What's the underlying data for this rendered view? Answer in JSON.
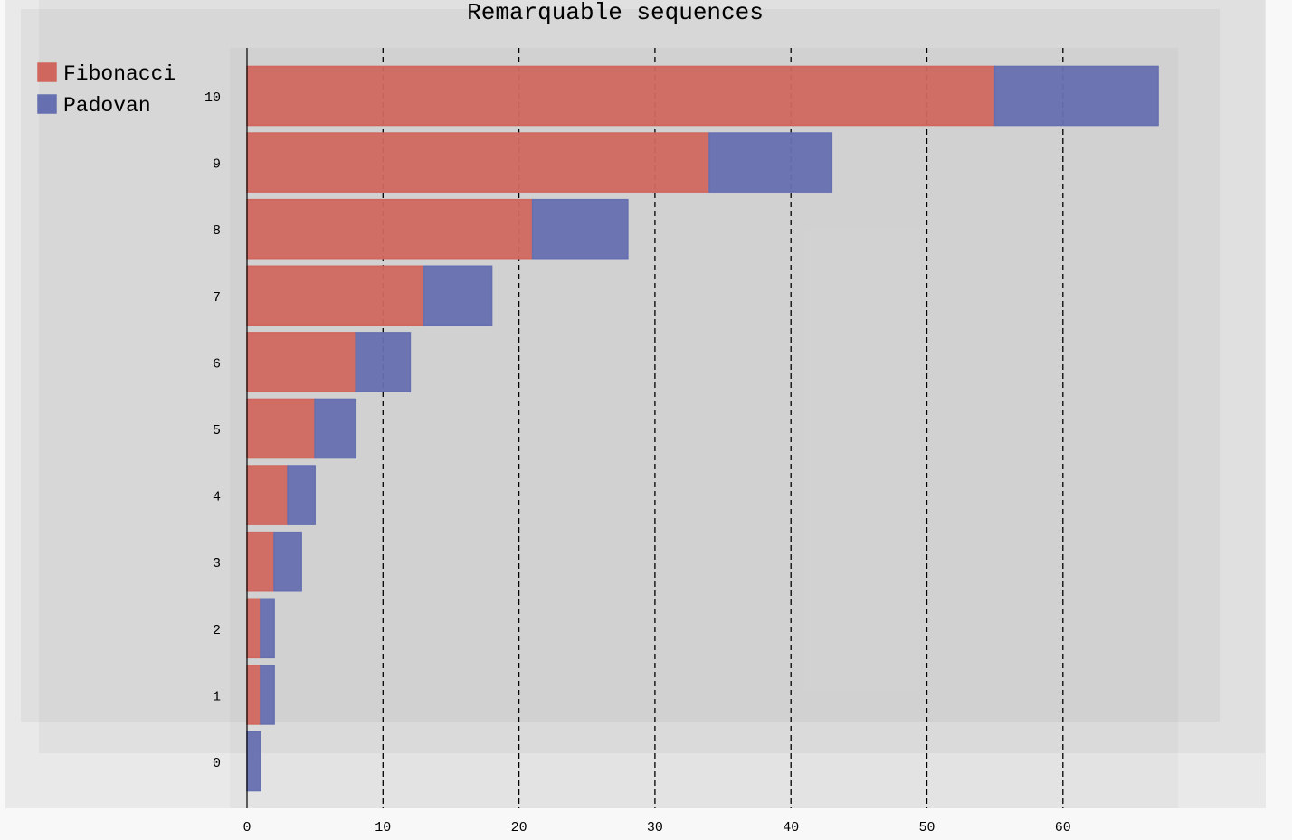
{
  "chart_data": {
    "type": "bar",
    "orientation": "horizontal",
    "stacked": true,
    "title": "Remarquable sequences",
    "categories": [
      "0",
      "1",
      "2",
      "3",
      "4",
      "5",
      "6",
      "7",
      "8",
      "9",
      "10"
    ],
    "series": [
      {
        "name": "Fibonacci",
        "color": "#d0675e",
        "values": [
          0,
          1,
          1,
          2,
          3,
          5,
          8,
          13,
          21,
          34,
          55
        ]
      },
      {
        "name": "Padovan",
        "color": "#6670b0",
        "values": [
          1,
          1,
          1,
          2,
          2,
          3,
          4,
          5,
          7,
          9,
          12
        ]
      }
    ],
    "xlim": [
      0,
      70
    ],
    "xticks": [
      0,
      10,
      20,
      30,
      40,
      50,
      60
    ],
    "xlabel": "",
    "ylabel": "",
    "grid": "vertical-dashed",
    "legend": "top-left"
  }
}
